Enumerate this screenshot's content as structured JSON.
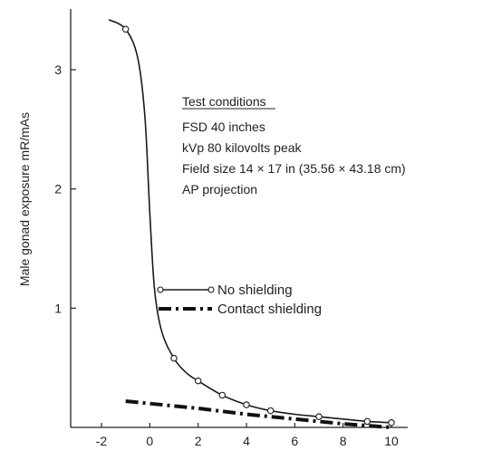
{
  "chart_data": {
    "type": "line",
    "title": "",
    "xlabel": "",
    "ylabel": "Male gonad exposure mR/mAs",
    "xlim": [
      -2,
      10
    ],
    "ylim": [
      0,
      3.5
    ],
    "x_ticks": [
      "-2",
      "0",
      "2",
      "4",
      "6",
      "8",
      "10"
    ],
    "y_ticks": [
      "1",
      "2",
      "3"
    ],
    "grid": false,
    "legend_position": "center-right",
    "series": [
      {
        "name": "No shielding",
        "style": "solid-with-open-circles",
        "color": "#1a1a1a",
        "x": [
          -1,
          1,
          2,
          3,
          4,
          5,
          7,
          9,
          10
        ],
        "y": [
          3.34,
          0.58,
          0.39,
          0.27,
          0.19,
          0.14,
          0.09,
          0.05,
          0.04
        ],
        "curve_x": [
          -1.7,
          -1,
          -0.5,
          -0.2,
          0,
          0.2,
          0.5,
          1,
          1.5,
          2,
          3,
          4,
          5,
          6,
          7,
          8,
          9,
          10
        ],
        "curve_y": [
          3.42,
          3.34,
          3.1,
          2.6,
          1.8,
          1.15,
          0.8,
          0.58,
          0.46,
          0.39,
          0.27,
          0.19,
          0.14,
          0.11,
          0.09,
          0.07,
          0.05,
          0.04
        ]
      },
      {
        "name": "Contact shielding",
        "style": "dash-dot-thick",
        "color": "#111111",
        "x": [
          -1,
          2,
          4,
          6,
          8,
          10
        ],
        "y": [
          0.22,
          0.16,
          0.11,
          0.07,
          0.03,
          0.0
        ]
      }
    ],
    "annotation": {
      "heading": "Test conditions",
      "lines": [
        "FSD 40 inches",
        "kVp 80 kilovolts peak",
        "Field size 14 × 17 in (35.56 × 43.18 cm)",
        "AP projection"
      ]
    }
  }
}
